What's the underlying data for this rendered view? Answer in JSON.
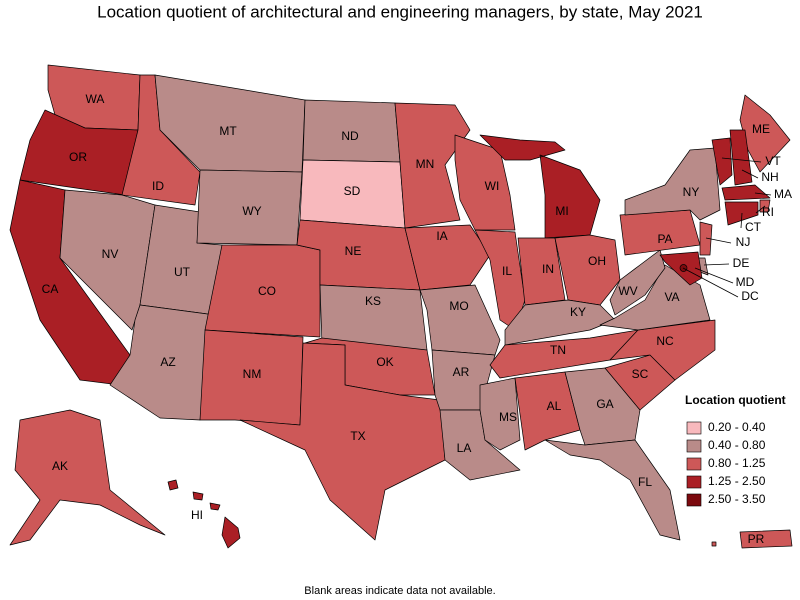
{
  "title": "Location quotient of architectural and engineering managers, by state, May 2021",
  "states": [
    {
      "label": "WA",
      "class": 2
    },
    {
      "label": "OR",
      "class": 3
    },
    {
      "label": "CA",
      "class": 3
    },
    {
      "label": "ID",
      "class": 2
    },
    {
      "label": "NV",
      "class": 1
    },
    {
      "label": "UT",
      "class": 1
    },
    {
      "label": "AZ",
      "class": 1
    },
    {
      "label": "MT",
      "class": 1
    },
    {
      "label": "WY",
      "class": 1
    },
    {
      "label": "CO",
      "class": 2
    },
    {
      "label": "NM",
      "class": 2
    },
    {
      "label": "ND",
      "class": 1
    },
    {
      "label": "SD",
      "class": 0
    },
    {
      "label": "NE",
      "class": 2
    },
    {
      "label": "KS",
      "class": 1
    },
    {
      "label": "OK",
      "class": 2
    },
    {
      "label": "TX",
      "class": 2
    },
    {
      "label": "MN",
      "class": 2
    },
    {
      "label": "IA",
      "class": 2
    },
    {
      "label": "MO",
      "class": 1
    },
    {
      "label": "AR",
      "class": 1
    },
    {
      "label": "LA",
      "class": 1
    },
    {
      "label": "WI",
      "class": 2
    },
    {
      "label": "IL",
      "class": 2
    },
    {
      "label": "MI",
      "class": 3
    },
    {
      "label": "IN",
      "class": 2
    },
    {
      "label": "OH",
      "class": 2
    },
    {
      "label": "KY",
      "class": 1
    },
    {
      "label": "TN",
      "class": 2
    },
    {
      "label": "MS",
      "class": 1
    },
    {
      "label": "AL",
      "class": 2
    },
    {
      "label": "GA",
      "class": 1
    },
    {
      "label": "FL",
      "class": 1
    },
    {
      "label": "SC",
      "class": 2
    },
    {
      "label": "NC",
      "class": 2
    },
    {
      "label": "VA",
      "class": 1
    },
    {
      "label": "WV",
      "class": 1
    },
    {
      "label": "PA",
      "class": 2
    },
    {
      "label": "NY",
      "class": 1
    },
    {
      "label": "NJ",
      "class": 2
    },
    {
      "label": "DE",
      "class": 1
    },
    {
      "label": "MD",
      "class": 3
    },
    {
      "label": "DC",
      "class": 4
    },
    {
      "label": "ME",
      "class": 2
    },
    {
      "label": "VT",
      "class": 3
    },
    {
      "label": "NH",
      "class": 3
    },
    {
      "label": "MA",
      "class": 3
    },
    {
      "label": "RI",
      "class": 2
    },
    {
      "label": "CT",
      "class": 3
    },
    {
      "label": "AK",
      "class": 2
    },
    {
      "label": "HI",
      "class": 3
    },
    {
      "label": "PR",
      "class": 2
    }
  ],
  "legend": {
    "title": "Location quotient",
    "items": [
      {
        "label": "0.20 - 0.40",
        "color": "#f8b9bd"
      },
      {
        "label": "0.40 - 0.80",
        "color": "#b98b89"
      },
      {
        "label": "0.80 - 1.25",
        "color": "#cd5858"
      },
      {
        "label": "1.25 - 2.50",
        "color": "#aa1f25"
      },
      {
        "label": "2.50 - 3.50",
        "color": "#7c0a0e"
      }
    ]
  },
  "footnote": "Blank areas indicate data not available."
}
